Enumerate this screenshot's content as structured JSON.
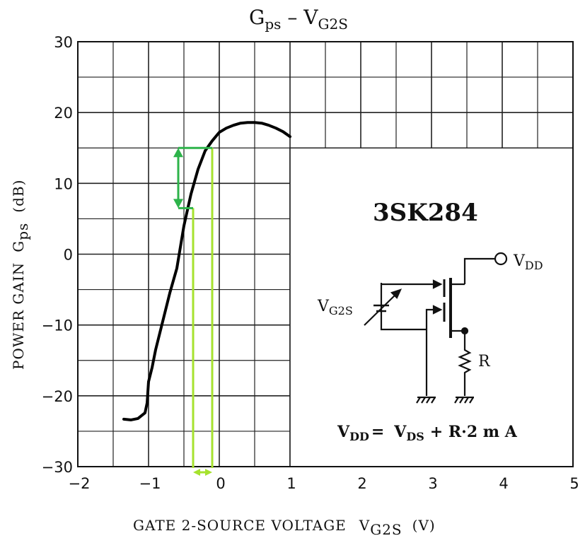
{
  "chart_data": {
    "type": "line",
    "title_main": "G",
    "title_main_sub": "ps",
    "title_sep": " – ",
    "title_var": "V",
    "title_var_sub": "G2S",
    "xlabel_text": "GATE 2-SOURCE VOLTAGE",
    "xlabel_symbol": "V",
    "xlabel_symbol_sub": "G2S",
    "xlabel_unit": "(V)",
    "ylabel_text": "POWER GAIN",
    "ylabel_symbol": "G",
    "ylabel_symbol_sub": "ps",
    "ylabel_unit": "(dB)",
    "xlim": [
      -2,
      5
    ],
    "ylim": [
      -30,
      30
    ],
    "xticks": [
      "−2",
      "−1",
      "0",
      "1",
      "2",
      "3",
      "4",
      "5"
    ],
    "yticks": [
      "30",
      "20",
      "10",
      "0",
      "−10",
      "−20",
      "−30"
    ],
    "series": [
      {
        "x": [
          -1.35,
          -1.25,
          -1.15,
          -1.05,
          -1.02,
          -1.0,
          -0.95,
          -0.9,
          -0.8,
          -0.7,
          -0.6,
          -0.5,
          -0.4,
          -0.3,
          -0.2,
          -0.1,
          0.0,
          0.1,
          0.2,
          0.3,
          0.4,
          0.5,
          0.6,
          0.7,
          0.8,
          0.9,
          1.0
        ],
        "y": [
          -23.3,
          -23.4,
          -23.2,
          -22.4,
          -21.0,
          -18.0,
          -16.0,
          -13.5,
          -9.5,
          -5.5,
          -2.0,
          4.0,
          8.5,
          12.0,
          14.6,
          16.0,
          17.2,
          17.8,
          18.2,
          18.5,
          18.6,
          18.6,
          18.5,
          18.2,
          17.8,
          17.3,
          16.6
        ]
      }
    ],
    "annotations": {
      "gain_arrow": {
        "x": -0.58,
        "y_from": 15.0,
        "y_to": 6.5,
        "color": "#2db34a"
      },
      "voltage_arrow": {
        "x_from": -0.37,
        "x_to": -0.1,
        "y": -30.8,
        "color": "#a6e22e"
      },
      "guide_lines": [
        {
          "x": -0.37,
          "y_top": 6.5
        },
        {
          "x": -0.1,
          "y_top": 15.0
        }
      ],
      "colors": {
        "gain": "#2db34a",
        "voltage": "#a6e22e"
      }
    },
    "grid": true,
    "inset": {
      "part_number": "3SK284",
      "vdd_label": "V",
      "vdd_sub": "DD",
      "vg2s_label": "V",
      "vg2s_sub": "G2S",
      "r_label": "R",
      "formula_vdd": "V",
      "formula_vdd_sub": "DD",
      "formula_eq": "=",
      "formula_vds": "V",
      "formula_vds_sub": "DS",
      "formula_rest": "+ R·2 m A"
    }
  }
}
